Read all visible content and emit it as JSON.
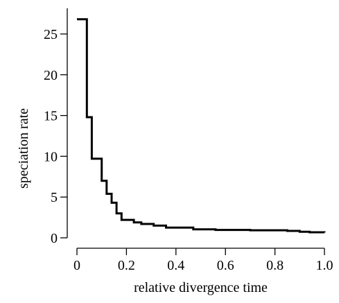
{
  "chart_data": {
    "type": "line",
    "title": "",
    "xlabel": "relative divergence time",
    "ylabel": "speciation rate",
    "xlim": [
      0,
      1.0
    ],
    "ylim": [
      0,
      27
    ],
    "x_ticks": [
      0,
      0.2,
      0.4,
      0.6,
      0.8,
      1.0
    ],
    "x_tick_labels": [
      "0",
      "0.2",
      "0.4",
      "0.6",
      "0.8",
      "1.0"
    ],
    "y_ticks": [
      0,
      5,
      10,
      15,
      20,
      25
    ],
    "y_tick_labels": [
      "0",
      "5",
      "10",
      "15",
      "20",
      "25"
    ],
    "grid": false,
    "step": true,
    "series_color": "#000000",
    "series": [
      {
        "x": [
          0.0,
          0.04,
          0.06,
          0.1,
          0.12,
          0.14,
          0.16,
          0.18,
          0.23,
          0.26,
          0.31,
          0.36,
          0.47,
          0.56,
          0.7,
          0.85,
          0.9,
          0.94,
          1.0
        ],
        "y": [
          26.8,
          14.8,
          9.7,
          7.0,
          5.4,
          4.3,
          3.0,
          2.2,
          1.9,
          1.7,
          1.5,
          1.25,
          1.05,
          0.97,
          0.93,
          0.85,
          0.75,
          0.68,
          0.65
        ]
      }
    ]
  }
}
